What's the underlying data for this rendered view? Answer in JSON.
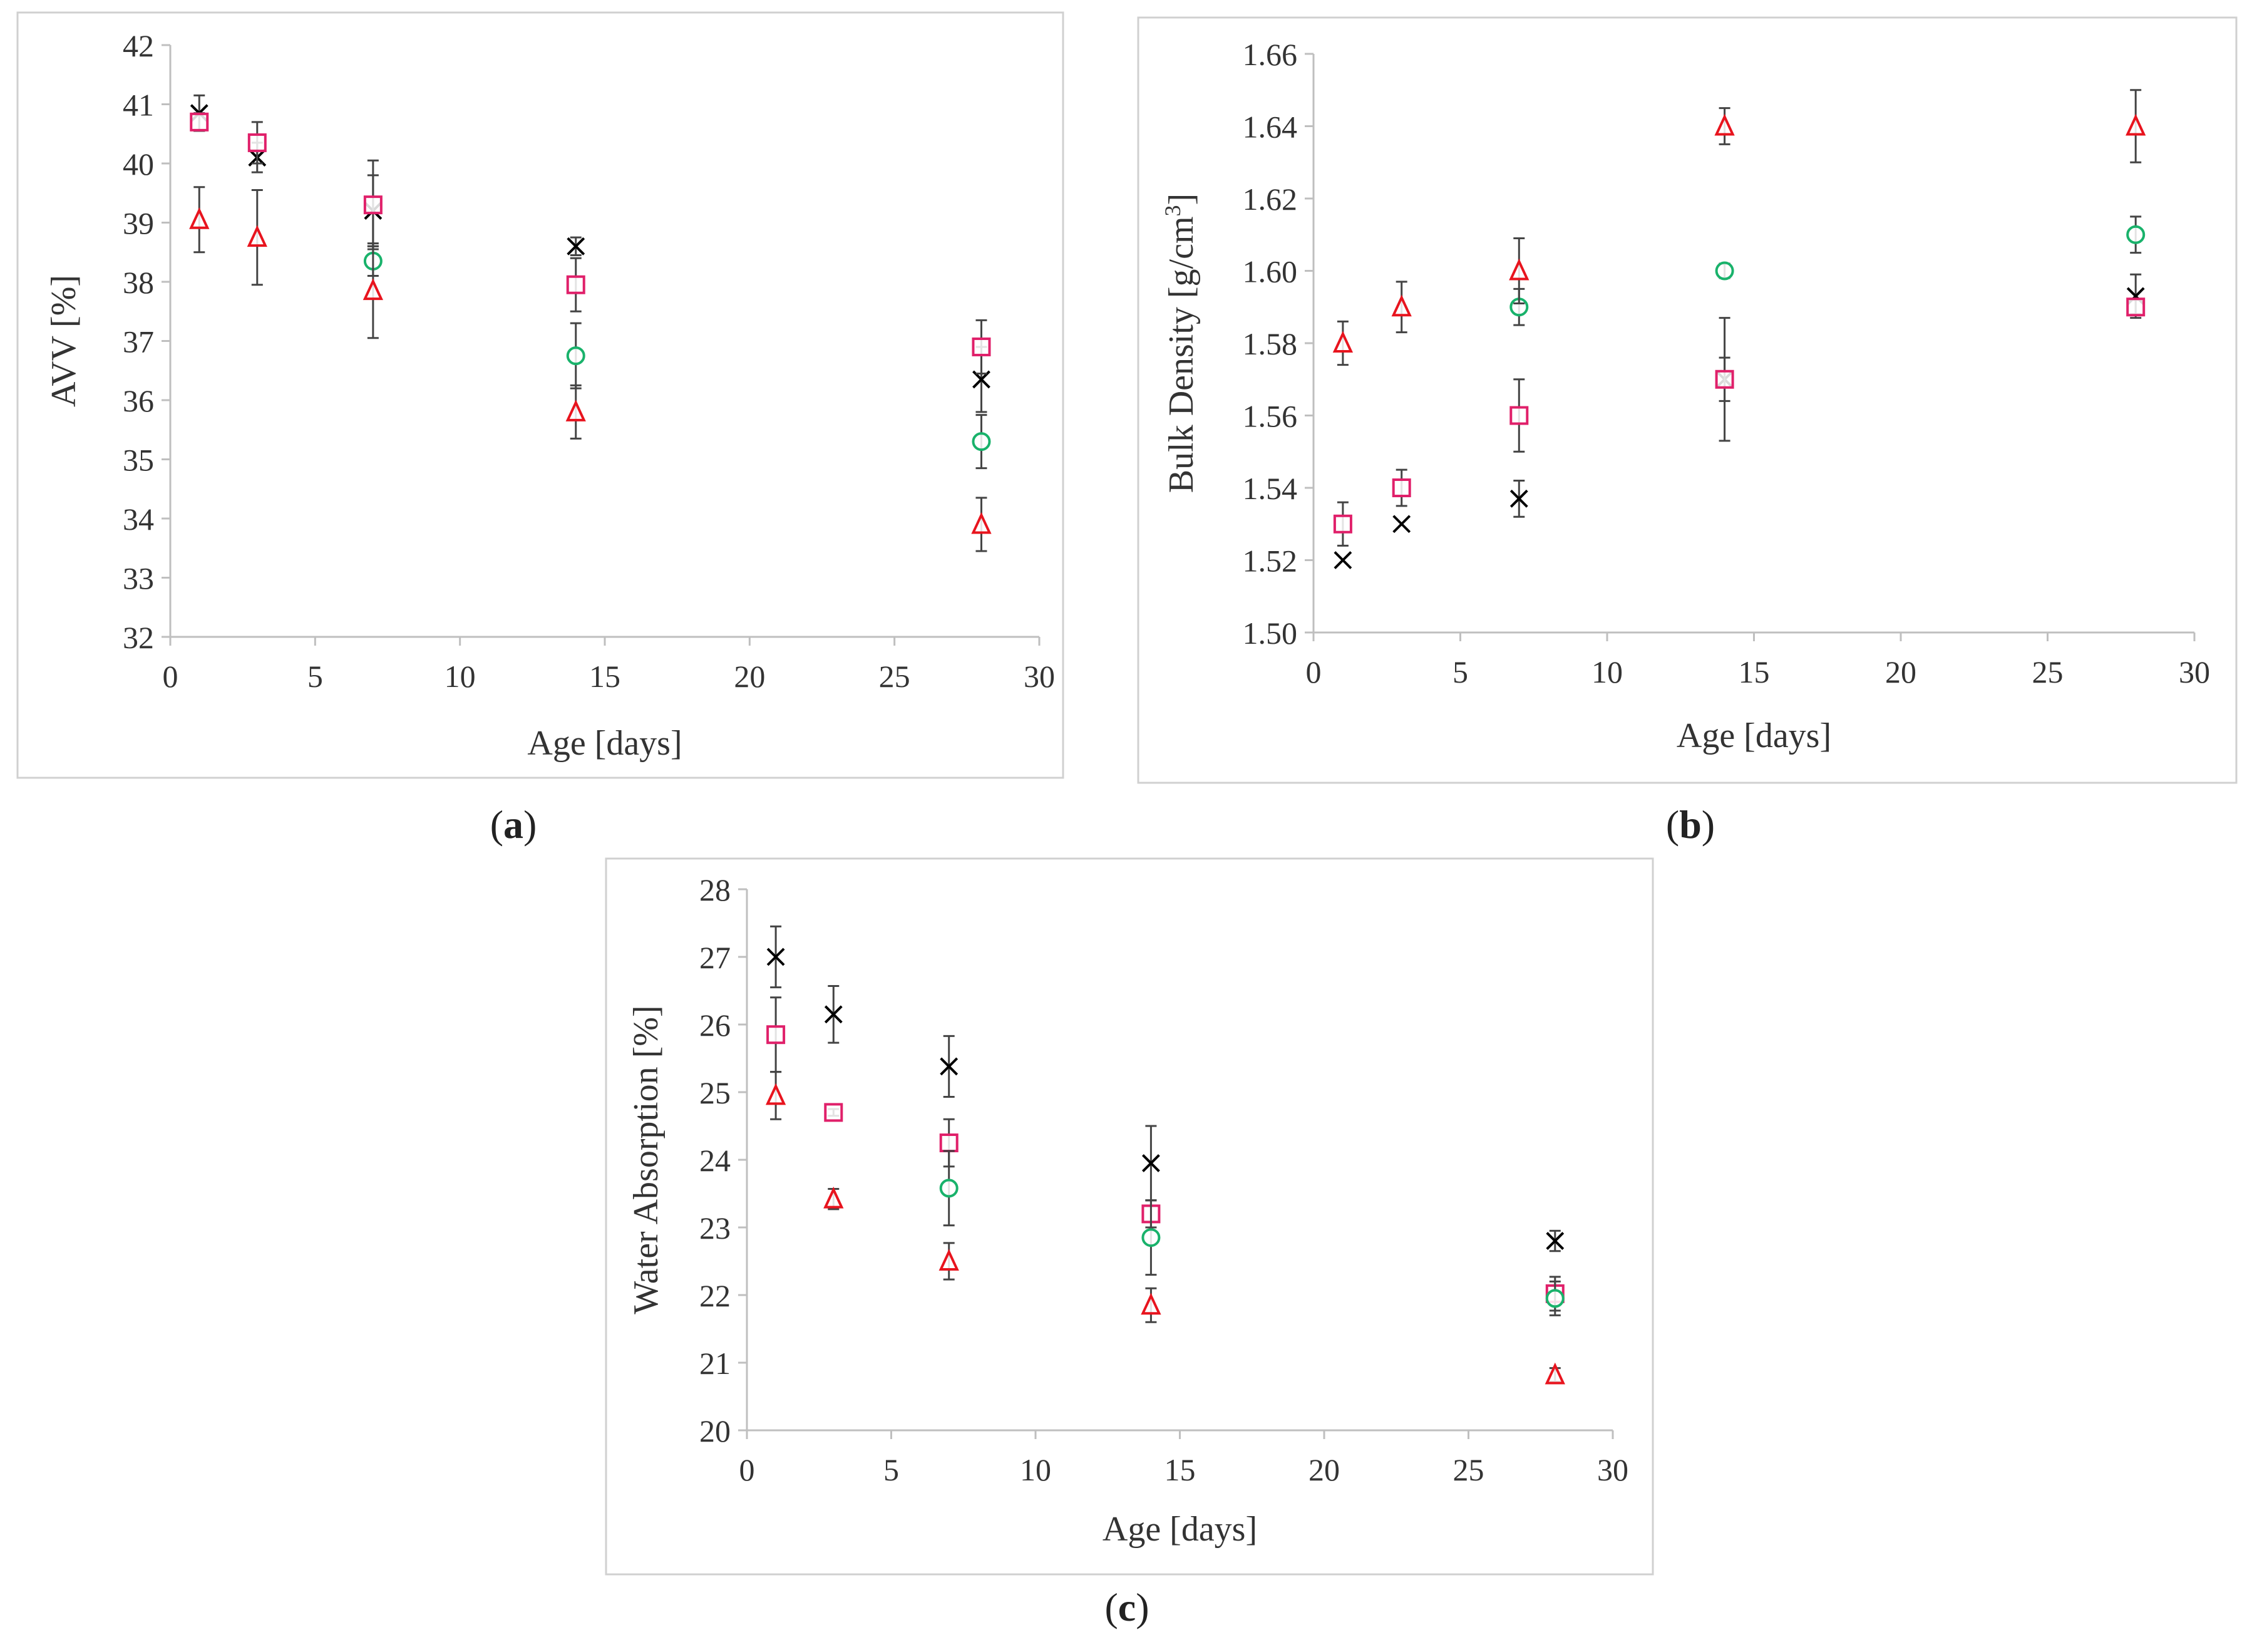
{
  "colors": {
    "frame": "#d0d0d0",
    "axis": "#bfbfbf",
    "tick_text": "#333333",
    "error_bar": "#444444",
    "cross": "#000000",
    "square": "#e0206a",
    "circle": "#19b26b",
    "triangle": "#e8141e"
  },
  "panels": [
    {
      "id": "a",
      "open": "(",
      "letter": "a",
      "close": ")"
    },
    {
      "id": "b",
      "open": "(",
      "letter": "b",
      "close": ")"
    },
    {
      "id": "c",
      "open": "(",
      "letter": "c",
      "close": ")"
    }
  ],
  "chart_data": [
    {
      "type": "scatter",
      "panel": "a",
      "title": "",
      "xlabel": "Age [days]",
      "ylabel": "AVV [%]",
      "xlim": [
        0,
        30
      ],
      "ylim": [
        32,
        42
      ],
      "xticks": [
        0,
        5,
        10,
        15,
        20,
        25,
        30
      ],
      "yticks": [
        32,
        33,
        34,
        35,
        36,
        37,
        38,
        39,
        40,
        41,
        42
      ],
      "ytick_decimals": 0,
      "series": [
        {
          "marker": "cross",
          "points": [
            {
              "x": 1,
              "y": 40.85,
              "err": 0.3
            },
            {
              "x": 3,
              "y": 40.1,
              "err": 0.25
            },
            {
              "x": 7,
              "y": 39.2,
              "err": 0.6
            },
            {
              "x": 14,
              "y": 38.6,
              "err": 0.15
            },
            {
              "x": 28,
              "y": 36.35,
              "err": 0.55
            }
          ]
        },
        {
          "marker": "square",
          "points": [
            {
              "x": 1,
              "y": 40.7,
              "err": 0.15
            },
            {
              "x": 3,
              "y": 40.35,
              "err": 0.35
            },
            {
              "x": 7,
              "y": 39.3,
              "err": 0.75
            },
            {
              "x": 14,
              "y": 37.95,
              "err": 0.45
            },
            {
              "x": 28,
              "y": 36.9,
              "err": 0.45
            }
          ]
        },
        {
          "marker": "circle",
          "points": [
            {
              "x": 7,
              "y": 38.35,
              "err": 0.25
            },
            {
              "x": 14,
              "y": 36.75,
              "err": 0.55
            },
            {
              "x": 28,
              "y": 35.3,
              "err": 0.45
            }
          ]
        },
        {
          "marker": "triangle",
          "points": [
            {
              "x": 1,
              "y": 39.05,
              "err": 0.55
            },
            {
              "x": 3,
              "y": 38.75,
              "err": 0.8
            },
            {
              "x": 7,
              "y": 37.85,
              "err": 0.8
            },
            {
              "x": 14,
              "y": 35.8,
              "err": 0.45
            },
            {
              "x": 28,
              "y": 33.9,
              "err": 0.45
            }
          ]
        }
      ]
    },
    {
      "type": "scatter",
      "panel": "b",
      "title": "",
      "xlabel": "Age [days]",
      "ylabel": "Bulk Density [g/cm",
      "ylabel_sup": "3",
      "ylabel_end": "]",
      "xlim": [
        0,
        30
      ],
      "ylim": [
        1.5,
        1.66
      ],
      "xticks": [
        0,
        5,
        10,
        15,
        20,
        25,
        30
      ],
      "yticks": [
        1.5,
        1.52,
        1.54,
        1.56,
        1.58,
        1.6,
        1.62,
        1.64,
        1.66
      ],
      "ytick_decimals": 2,
      "series": [
        {
          "marker": "cross",
          "points": [
            {
              "x": 1,
              "y": 1.52,
              "err": 0
            },
            {
              "x": 3,
              "y": 1.53,
              "err": 0
            },
            {
              "x": 7,
              "y": 1.537,
              "err": 0.005
            },
            {
              "x": 14,
              "y": 1.57,
              "err": 0.006
            },
            {
              "x": 28,
              "y": 1.593,
              "err": 0.006
            }
          ]
        },
        {
          "marker": "square",
          "points": [
            {
              "x": 1,
              "y": 1.53,
              "err": 0.006
            },
            {
              "x": 3,
              "y": 1.54,
              "err": 0.005
            },
            {
              "x": 7,
              "y": 1.56,
              "err": 0.01
            },
            {
              "x": 14,
              "y": 1.57,
              "err": 0.017
            },
            {
              "x": 28,
              "y": 1.59,
              "err": 0.002
            }
          ]
        },
        {
          "marker": "circle",
          "points": [
            {
              "x": 7,
              "y": 1.59,
              "err": 0.005
            },
            {
              "x": 14,
              "y": 1.6,
              "err": 0.002
            },
            {
              "x": 28,
              "y": 1.61,
              "err": 0.005
            }
          ]
        },
        {
          "marker": "triangle",
          "points": [
            {
              "x": 1,
              "y": 1.58,
              "err": 0.006
            },
            {
              "x": 3,
              "y": 1.59,
              "err": 0.007
            },
            {
              "x": 7,
              "y": 1.6,
              "err": 0.009
            },
            {
              "x": 14,
              "y": 1.64,
              "err": 0.005
            },
            {
              "x": 28,
              "y": 1.64,
              "err": 0.01
            }
          ]
        }
      ]
    },
    {
      "type": "scatter",
      "panel": "c",
      "title": "",
      "xlabel": "Age [days]",
      "ylabel": "Water Absorption [%]",
      "xlim": [
        0,
        30
      ],
      "ylim": [
        20,
        28
      ],
      "xticks": [
        0,
        5,
        10,
        15,
        20,
        25,
        30
      ],
      "yticks": [
        20,
        21,
        22,
        23,
        24,
        25,
        26,
        27,
        28
      ],
      "ytick_decimals": 0,
      "series": [
        {
          "marker": "cross",
          "points": [
            {
              "x": 1,
              "y": 27.0,
              "err": 0.45
            },
            {
              "x": 3,
              "y": 26.15,
              "err": 0.42
            },
            {
              "x": 7,
              "y": 25.38,
              "err": 0.45
            },
            {
              "x": 14,
              "y": 23.95,
              "err": 0.55
            },
            {
              "x": 28,
              "y": 22.8,
              "err": 0.15
            }
          ]
        },
        {
          "marker": "square",
          "points": [
            {
              "x": 1,
              "y": 25.85,
              "err": 0.55
            },
            {
              "x": 3,
              "y": 24.7,
              "err": 0.05
            },
            {
              "x": 7,
              "y": 24.25,
              "err": 0.35
            },
            {
              "x": 14,
              "y": 23.2,
              "err": 0.2
            },
            {
              "x": 28,
              "y": 22.02,
              "err": 0.25
            }
          ]
        },
        {
          "marker": "circle",
          "points": [
            {
              "x": 7,
              "y": 23.58,
              "err": 0.55
            },
            {
              "x": 14,
              "y": 22.85,
              "err": 0.55
            },
            {
              "x": 28,
              "y": 21.95,
              "err": 0.25
            }
          ]
        },
        {
          "marker": "triangle",
          "points": [
            {
              "x": 1,
              "y": 24.95,
              "err": 0.35
            },
            {
              "x": 3,
              "y": 23.42,
              "err": 0.15
            },
            {
              "x": 7,
              "y": 22.5,
              "err": 0.27
            },
            {
              "x": 14,
              "y": 21.85,
              "err": 0.25
            },
            {
              "x": 28,
              "y": 20.82,
              "err": 0.1
            }
          ]
        }
      ]
    }
  ]
}
